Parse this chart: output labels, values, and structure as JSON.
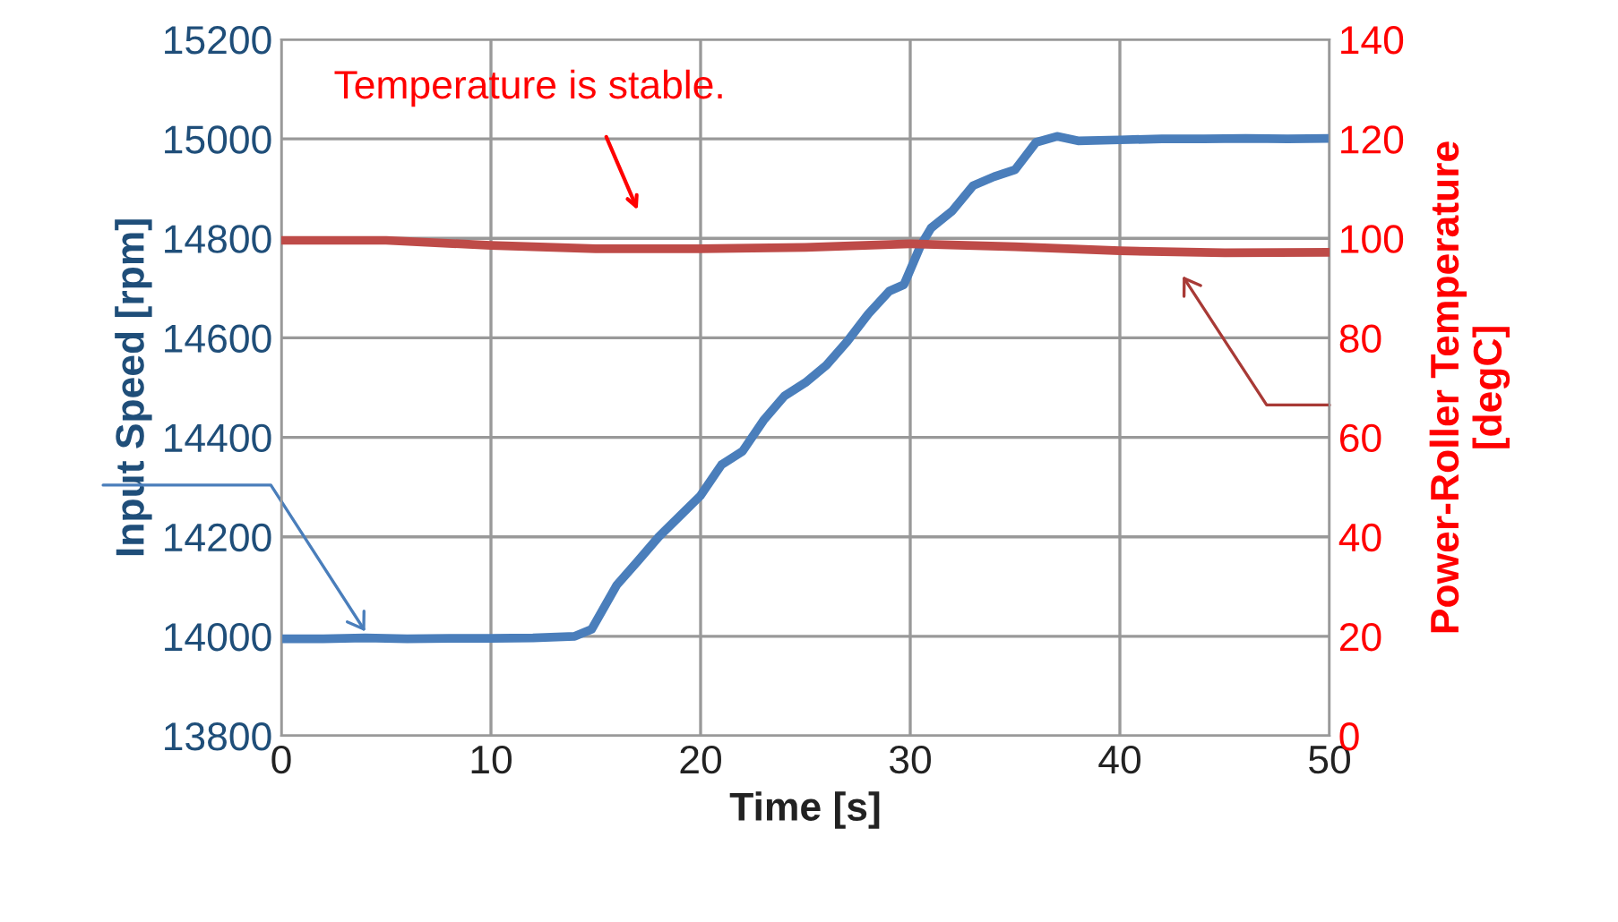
{
  "chart_data": {
    "type": "line",
    "xlabel": "Time [s]",
    "ylabel": "Input Speed [rpm]",
    "y2label": "Power-Roller Temperature\n[degC]",
    "xlim": [
      0,
      50
    ],
    "xticks": [
      0,
      10,
      20,
      30,
      40,
      50
    ],
    "ylim": [
      13800,
      15200
    ],
    "yticks": [
      13800,
      14000,
      14200,
      14400,
      14600,
      14800,
      15000,
      15200
    ],
    "y2lim": [
      0,
      140
    ],
    "y2ticks": [
      0,
      20,
      40,
      60,
      80,
      100,
      120,
      140
    ],
    "grid": true,
    "marker": "none",
    "line_style": "solid",
    "annotations": [
      "Temperature is stable."
    ],
    "series": [
      {
        "color": "#4a7ebb",
        "x": [
          0,
          2,
          4,
          6,
          8,
          10,
          12,
          14,
          14.8,
          16,
          17,
          18,
          20,
          21,
          22,
          23,
          24,
          25,
          26,
          27,
          28,
          29,
          29.7,
          30.5,
          31,
          32,
          33,
          34,
          35,
          36,
          37,
          38,
          40,
          42,
          44,
          46,
          48,
          50
        ],
        "values": [
          13995,
          13995,
          13997,
          13995,
          13996,
          13996,
          13997,
          14000,
          14014,
          14103,
          14151,
          14200,
          14283,
          14345,
          14372,
          14434,
          14483,
          14510,
          14545,
          14593,
          14648,
          14694,
          14707,
          14786,
          14821,
          14855,
          14906,
          14924,
          14938,
          14993,
          15005,
          14996,
          14998,
          15000,
          15000,
          15001,
          15000,
          15001
        ]
      },
      {
        "color": "#be4b48",
        "axis": "y2",
        "x": [
          0,
          5,
          10,
          15,
          20,
          25,
          30,
          35,
          40,
          45,
          50
        ],
        "values": [
          99.6,
          99.6,
          98.6,
          97.9,
          97.9,
          98.2,
          98.9,
          98.3,
          97.5,
          97.1,
          97.2
        ]
      }
    ]
  }
}
